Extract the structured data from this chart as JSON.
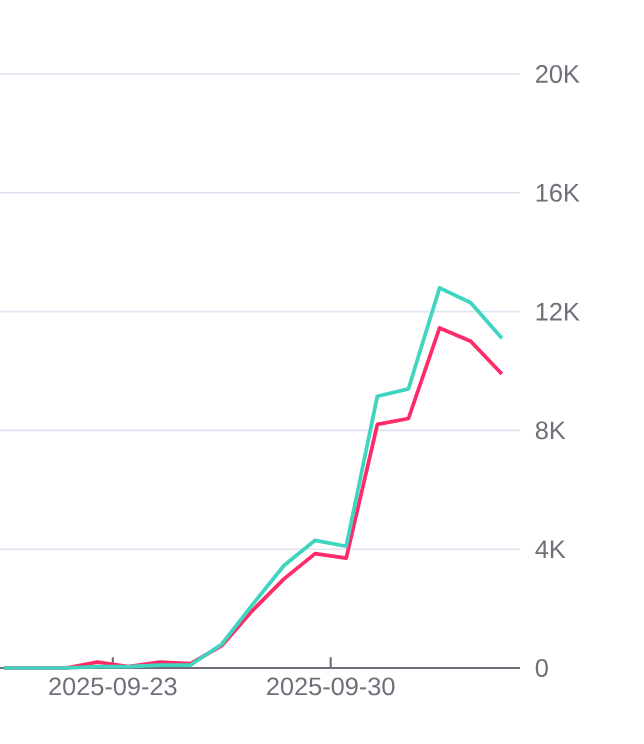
{
  "chart_data": {
    "type": "line",
    "x": [
      "2025-09-19T12:00",
      "2025-09-20T12:00",
      "2025-09-21T12:00",
      "2025-09-22T12:00",
      "2025-09-23T12:00",
      "2025-09-24T12:00",
      "2025-09-25T12:00",
      "2025-09-26T12:00",
      "2025-09-27T12:00",
      "2025-09-28T12:00",
      "2025-09-29T12:00",
      "2025-09-30T12:00",
      "2025-10-01T12:00",
      "2025-10-02T12:00",
      "2025-10-03T12:00",
      "2025-10-04T12:00",
      "2025-10-05T12:00"
    ],
    "series": [
      {
        "color": "#ff2a68",
        "values": [
          0,
          0,
          0,
          200,
          50,
          200,
          150,
          750,
          1950,
          3000,
          3850,
          3700,
          8200,
          8400,
          11450,
          11000,
          9900
        ]
      },
      {
        "color": "#3fd5c0",
        "values": [
          0,
          0,
          0,
          50,
          50,
          100,
          100,
          800,
          2150,
          3450,
          4300,
          4100,
          9150,
          9400,
          12800,
          12300,
          11100
        ]
      }
    ],
    "xlim": [
      "2025-09-19T09:00",
      "2025-10-06T02:00"
    ],
    "xticks": [
      "2025-09-23",
      "2025-09-30"
    ],
    "ylim": [
      0,
      20000
    ],
    "yticks": [
      0,
      {
        "value": 4000,
        "label": "4K"
      },
      {
        "value": 8000,
        "label": "8K"
      },
      {
        "value": 12000,
        "label": "12K"
      },
      {
        "value": 16000,
        "label": "16K"
      },
      {
        "value": 20000,
        "label": "20K"
      }
    ],
    "grid": "y",
    "marker": "none",
    "line_style": "solid"
  }
}
